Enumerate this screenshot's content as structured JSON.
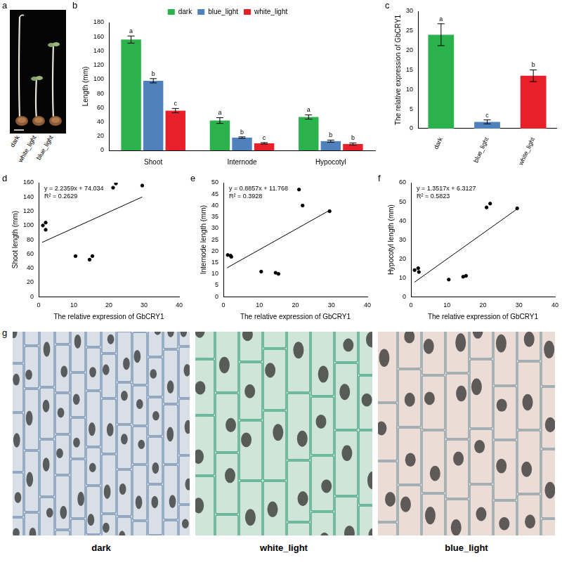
{
  "chart_data": [
    {
      "panel": "b",
      "type": "bar",
      "categories": [
        "Shoot",
        "Internode",
        "Hypocotyl"
      ],
      "series": [
        {
          "name": "dark",
          "color": "#2bb24c",
          "values": [
            156,
            42,
            47
          ],
          "errors": [
            5,
            4,
            3
          ],
          "letters": [
            "a",
            "a",
            "a"
          ]
        },
        {
          "name": "blue_light",
          "color": "#4f81bd",
          "values": [
            98,
            18,
            13
          ],
          "errors": [
            3,
            1,
            1.5
          ],
          "letters": [
            "b",
            "b",
            "b"
          ]
        },
        {
          "name": "white_light",
          "color": "#e8202a",
          "values": [
            56,
            10,
            9
          ],
          "errors": [
            3,
            1,
            1.5
          ],
          "letters": [
            "c",
            "c",
            "b"
          ]
        }
      ],
      "y_label": "Length (mm)",
      "ylim": [
        0,
        180
      ],
      "yticks": [
        0,
        20,
        40,
        60,
        80,
        100,
        120,
        140,
        160,
        180
      ],
      "grid": false,
      "legend": "top"
    },
    {
      "panel": "c",
      "type": "bar",
      "categories": [
        "dark",
        "blue_light",
        "white_light"
      ],
      "values": [
        24,
        1.7,
        13.5
      ],
      "errors": [
        2.8,
        0.5,
        1.5
      ],
      "letters": [
        "a",
        "c",
        "b"
      ],
      "colors": [
        "#2bb24c",
        "#4f81bd",
        "#e8202a"
      ],
      "y_label": "The relative expression of GbCRY1",
      "ylim": [
        0,
        30
      ],
      "yticks": [
        0,
        5,
        10,
        15,
        20,
        25,
        30
      ],
      "grid": false
    },
    {
      "panel": "d",
      "type": "scatter",
      "x": [
        1.2,
        2.0,
        2.0,
        10.5,
        14.5,
        15.3,
        21.2,
        22.0,
        29.5
      ],
      "values": [
        100,
        104,
        94,
        57,
        52,
        57,
        153,
        159,
        156
      ],
      "trendline": {
        "x": [
          1,
          29.5
        ],
        "values": [
          76.27,
          140
        ]
      },
      "annotations": [
        "y = 2.2359x + 74.034",
        "R² = 0.2629"
      ],
      "x_label": "The relative expression of GbCRY1",
      "y_label": "Shoot length (mm)",
      "xlim": [
        0,
        40
      ],
      "xticks": [
        0,
        10,
        20,
        30,
        40
      ],
      "ylim": [
        0,
        160
      ],
      "yticks": [
        0,
        20,
        40,
        60,
        80,
        100,
        120,
        140,
        160
      ],
      "color": "#000000",
      "marker": "circle",
      "grid": false
    },
    {
      "panel": "e",
      "type": "scatter",
      "x": [
        1.2,
        2.0,
        2.2,
        10.5,
        14.5,
        15.3,
        21.0,
        22.0,
        29.5
      ],
      "values": [
        18.3,
        18.0,
        17.5,
        11,
        10.5,
        10,
        47,
        40,
        37.5
      ],
      "trendline": {
        "x": [
          1,
          29.5
        ],
        "values": [
          12.65,
          37.9
        ]
      },
      "annotations": [
        "y = 0.8857x + 11.768",
        "R² = 0.3928"
      ],
      "x_label": "The relative expression of GbCRY1",
      "y_label": "Internode length (mm)",
      "xlim": [
        0,
        40
      ],
      "xticks": [
        0,
        10,
        20,
        30,
        40
      ],
      "ylim": [
        0,
        50
      ],
      "yticks": [
        0,
        5,
        10,
        15,
        20,
        25,
        30,
        35,
        40,
        45,
        50
      ],
      "color": "#000000",
      "marker": "circle",
      "grid": false
    },
    {
      "panel": "f",
      "type": "scatter",
      "x": [
        1.0,
        2.0,
        2.2,
        10.5,
        14.5,
        15.3,
        21.0,
        22.0,
        29.5
      ],
      "values": [
        14,
        15,
        13,
        9,
        10.5,
        11,
        47,
        49,
        46.5
      ],
      "trendline": {
        "x": [
          1,
          29.5
        ],
        "values": [
          7.66,
          46.19
        ]
      },
      "annotations": [
        "y = 1.3517x + 6.3127",
        "R² = 0.5823"
      ],
      "x_label": "The relative expression of GbCRY1",
      "y_label": "Hypocotyl length (mm)",
      "xlim": [
        0,
        40
      ],
      "xticks": [
        0,
        10,
        20,
        30,
        40
      ],
      "ylim": [
        0,
        60
      ],
      "yticks": [
        0,
        10,
        20,
        30,
        40,
        50,
        60
      ],
      "color": "#000000",
      "marker": "circle",
      "grid": false
    }
  ],
  "images": [
    {
      "panel": "a",
      "type": "photo",
      "labels": [
        "dark",
        "white_light",
        "blue_light"
      ]
    },
    {
      "panel": "g",
      "type": "micrograph",
      "labels": [
        "dark",
        "white_light",
        "blue_light"
      ]
    }
  ]
}
